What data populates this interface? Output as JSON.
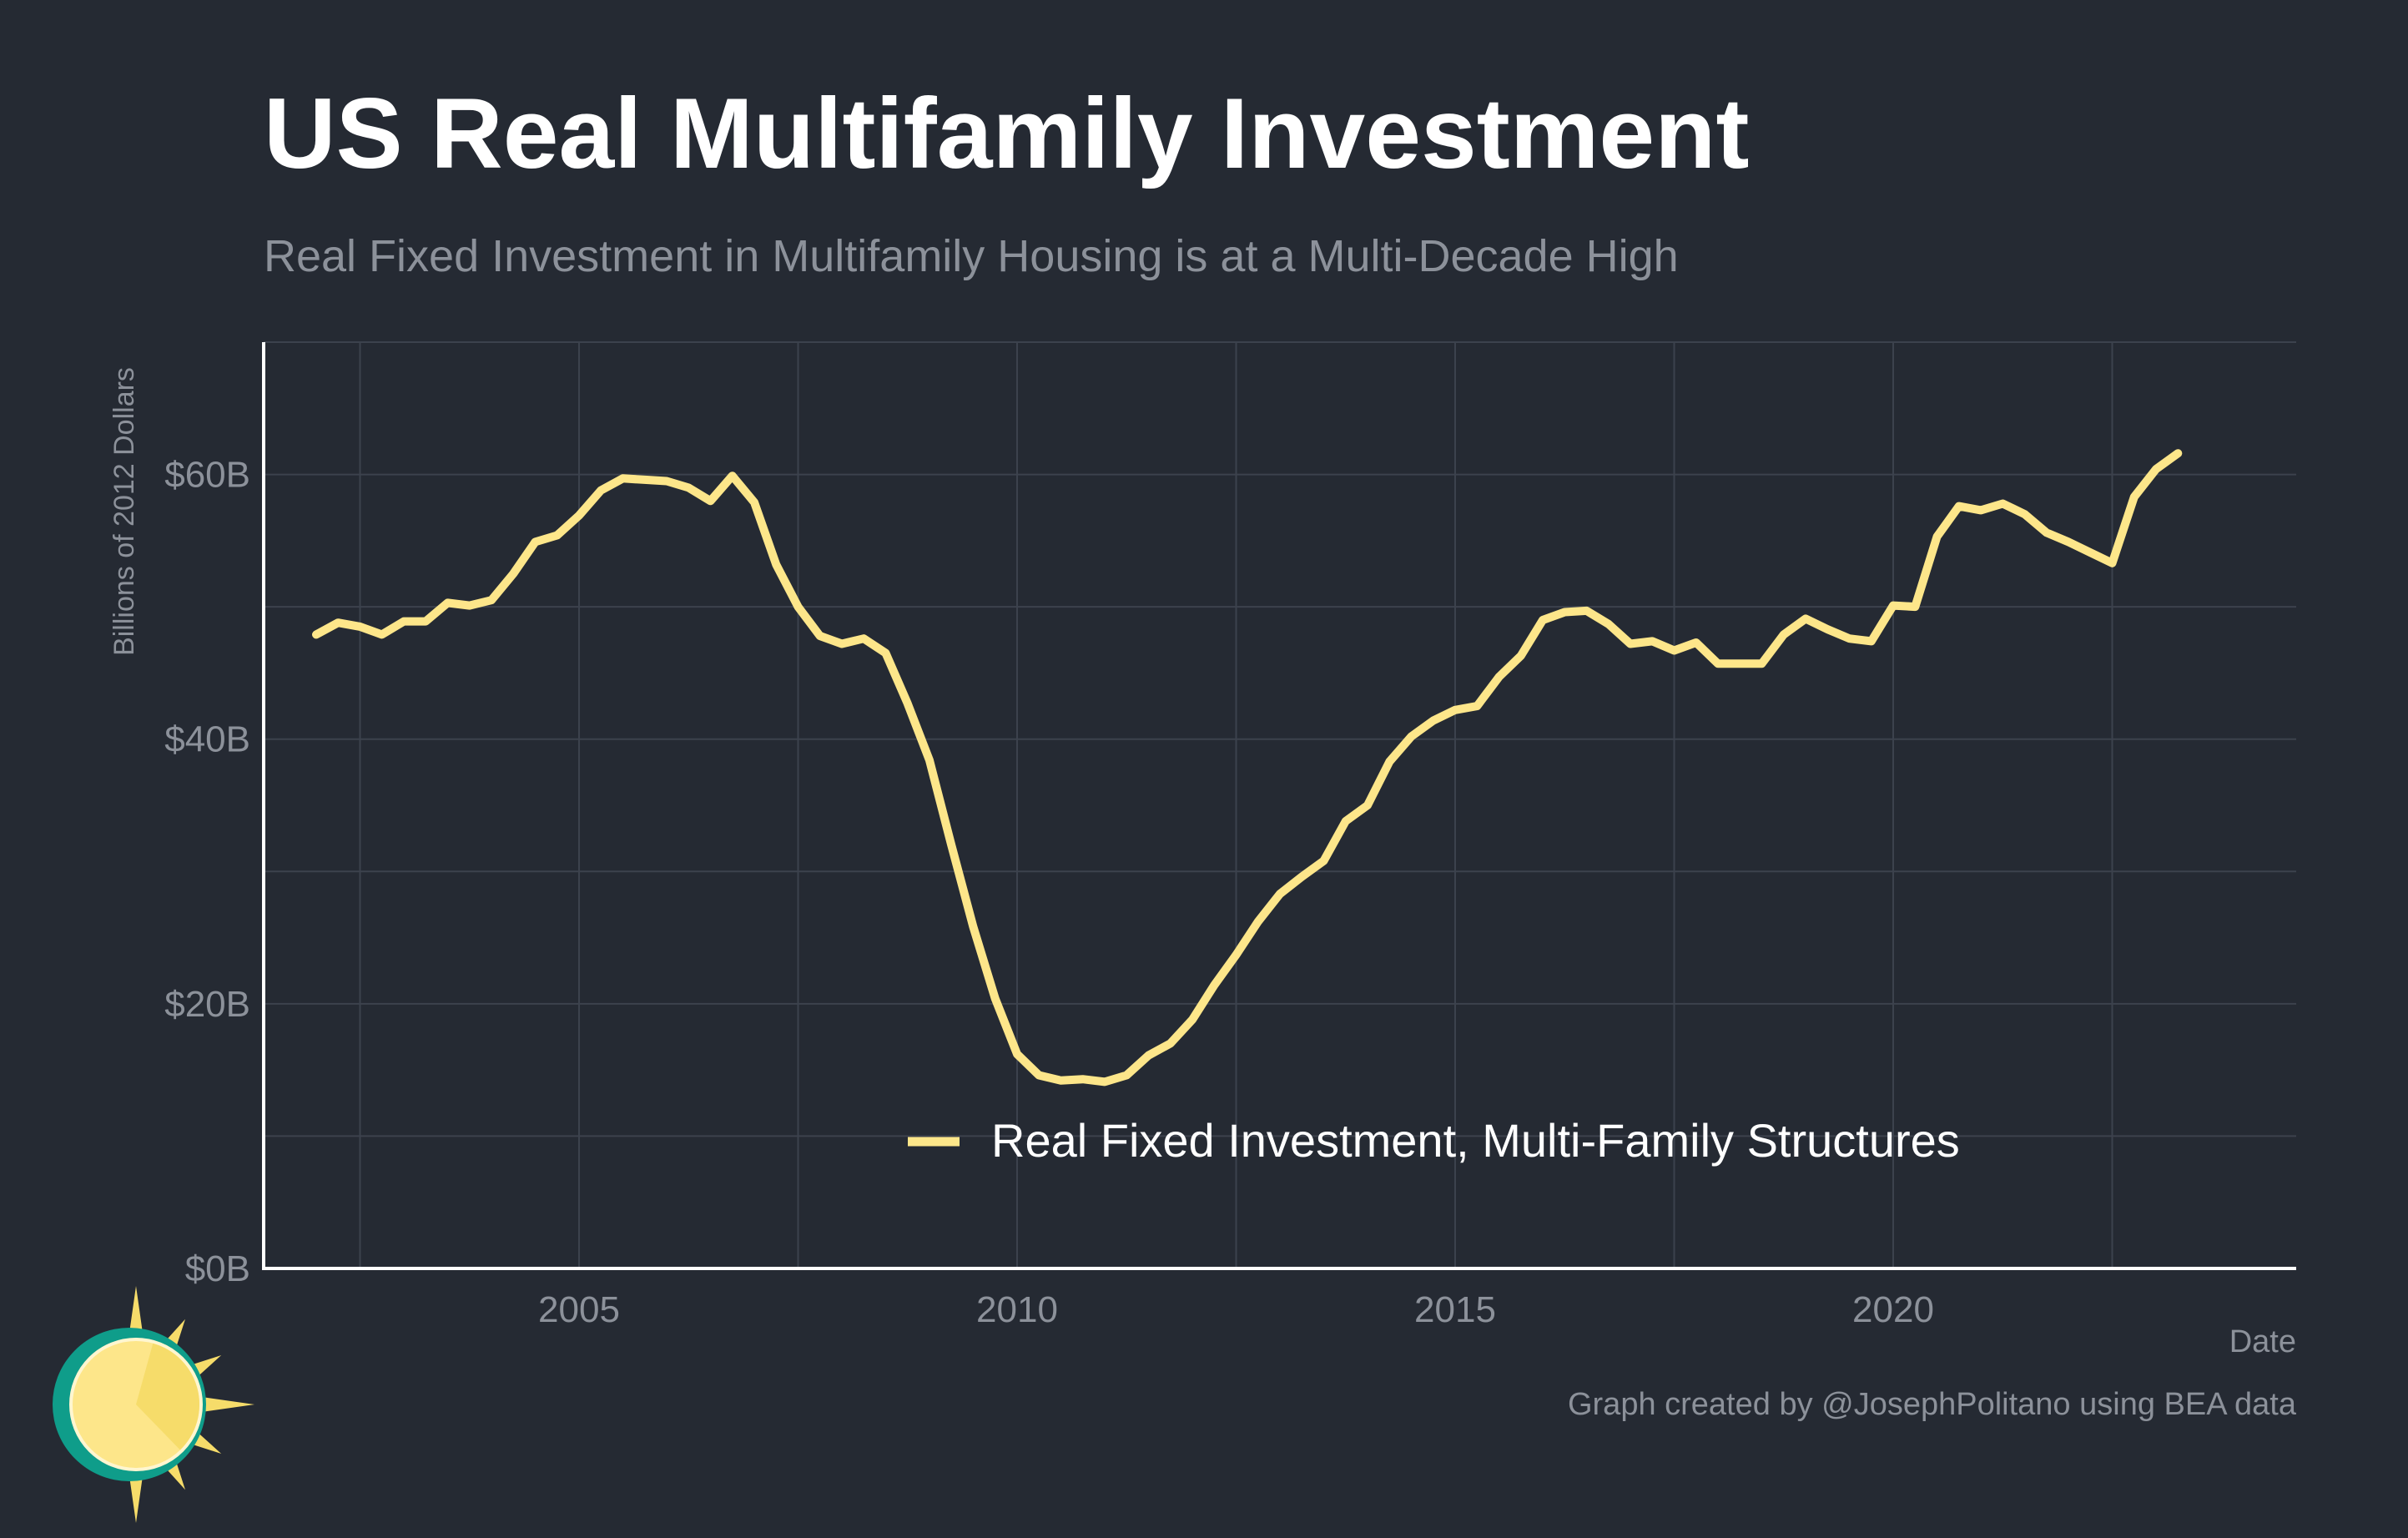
{
  "header": {
    "title": "US Real Multifamily Investment",
    "subtitle": "Real Fixed Investment in Multifamily Housing is at a Multi-Decade High"
  },
  "footer": {
    "caption": "Graph created by @JosephPolitano using BEA data"
  },
  "colors": {
    "background": "#252a33",
    "line": "#fde68a",
    "grid": "#3c424d",
    "axis": "#ffffff",
    "text_muted": "#8c919a",
    "logo_ring": "#0f9d8a",
    "logo_sun": "#f6dc6a"
  },
  "chart_data": {
    "type": "line",
    "xlabel": "Date",
    "ylabel": "Billions of 2012 Dollars",
    "xlim": [
      2001.4,
      2024.6
    ],
    "ylim": [
      0,
      70
    ],
    "xticks": [
      2005,
      2010,
      2015,
      2020
    ],
    "xtick_labels": [
      "2005",
      "2010",
      "2015",
      "2020"
    ],
    "yticks": [
      0,
      20,
      40,
      60
    ],
    "ytick_labels": [
      "$0B",
      "$20B",
      "$40B",
      "$60B"
    ],
    "grid": true,
    "legend_position": "bottom-center",
    "series": [
      {
        "name": "Real Fixed Investment, Multi-Family Structures",
        "x": [
          2002.0,
          2002.25,
          2002.5,
          2002.75,
          2003.0,
          2003.25,
          2003.5,
          2003.75,
          2004.0,
          2004.25,
          2004.5,
          2004.75,
          2005.0,
          2005.25,
          2005.5,
          2005.75,
          2006.0,
          2006.25,
          2006.5,
          2006.75,
          2007.0,
          2007.25,
          2007.5,
          2007.75,
          2008.0,
          2008.25,
          2008.5,
          2008.75,
          2009.0,
          2009.25,
          2009.5,
          2009.75,
          2010.0,
          2010.25,
          2010.5,
          2010.75,
          2011.0,
          2011.25,
          2011.5,
          2011.75,
          2012.0,
          2012.25,
          2012.5,
          2012.75,
          2013.0,
          2013.25,
          2013.5,
          2013.75,
          2014.0,
          2014.25,
          2014.5,
          2014.75,
          2015.0,
          2015.25,
          2015.5,
          2015.75,
          2016.0,
          2016.25,
          2016.5,
          2016.75,
          2017.0,
          2017.25,
          2017.5,
          2017.75,
          2018.0,
          2018.25,
          2018.5,
          2018.75,
          2019.0,
          2019.25,
          2019.5,
          2019.75,
          2020.0,
          2020.25,
          2020.5,
          2020.75,
          2021.0,
          2021.25,
          2021.5,
          2021.75,
          2022.0,
          2022.25,
          2022.5,
          2022.75,
          2023.0,
          2023.25
        ],
        "values": [
          47.9,
          48.8,
          48.5,
          47.9,
          48.9,
          48.9,
          50.3,
          50.1,
          50.5,
          52.5,
          54.9,
          55.4,
          56.9,
          58.8,
          59.7,
          59.6,
          59.5,
          59.0,
          58.0,
          59.9,
          57.9,
          53.2,
          50.0,
          47.8,
          47.2,
          47.6,
          46.5,
          42.7,
          38.4,
          32.0,
          25.8,
          20.4,
          16.2,
          14.6,
          14.2,
          14.3,
          14.1,
          14.6,
          16.1,
          17.0,
          18.8,
          21.4,
          23.7,
          26.2,
          28.3,
          29.6,
          30.8,
          33.8,
          35.0,
          38.3,
          40.2,
          41.4,
          42.2,
          42.5,
          44.7,
          46.3,
          49.0,
          49.6,
          49.7,
          48.7,
          47.2,
          47.4,
          46.7,
          47.3,
          45.7,
          45.7,
          45.7,
          47.9,
          49.1,
          48.3,
          47.6,
          47.4,
          50.1,
          50.0,
          55.3,
          57.6,
          57.3,
          57.8,
          57.0,
          55.6,
          54.9,
          54.1,
          53.3,
          58.3,
          60.4,
          61.6
        ]
      }
    ]
  }
}
